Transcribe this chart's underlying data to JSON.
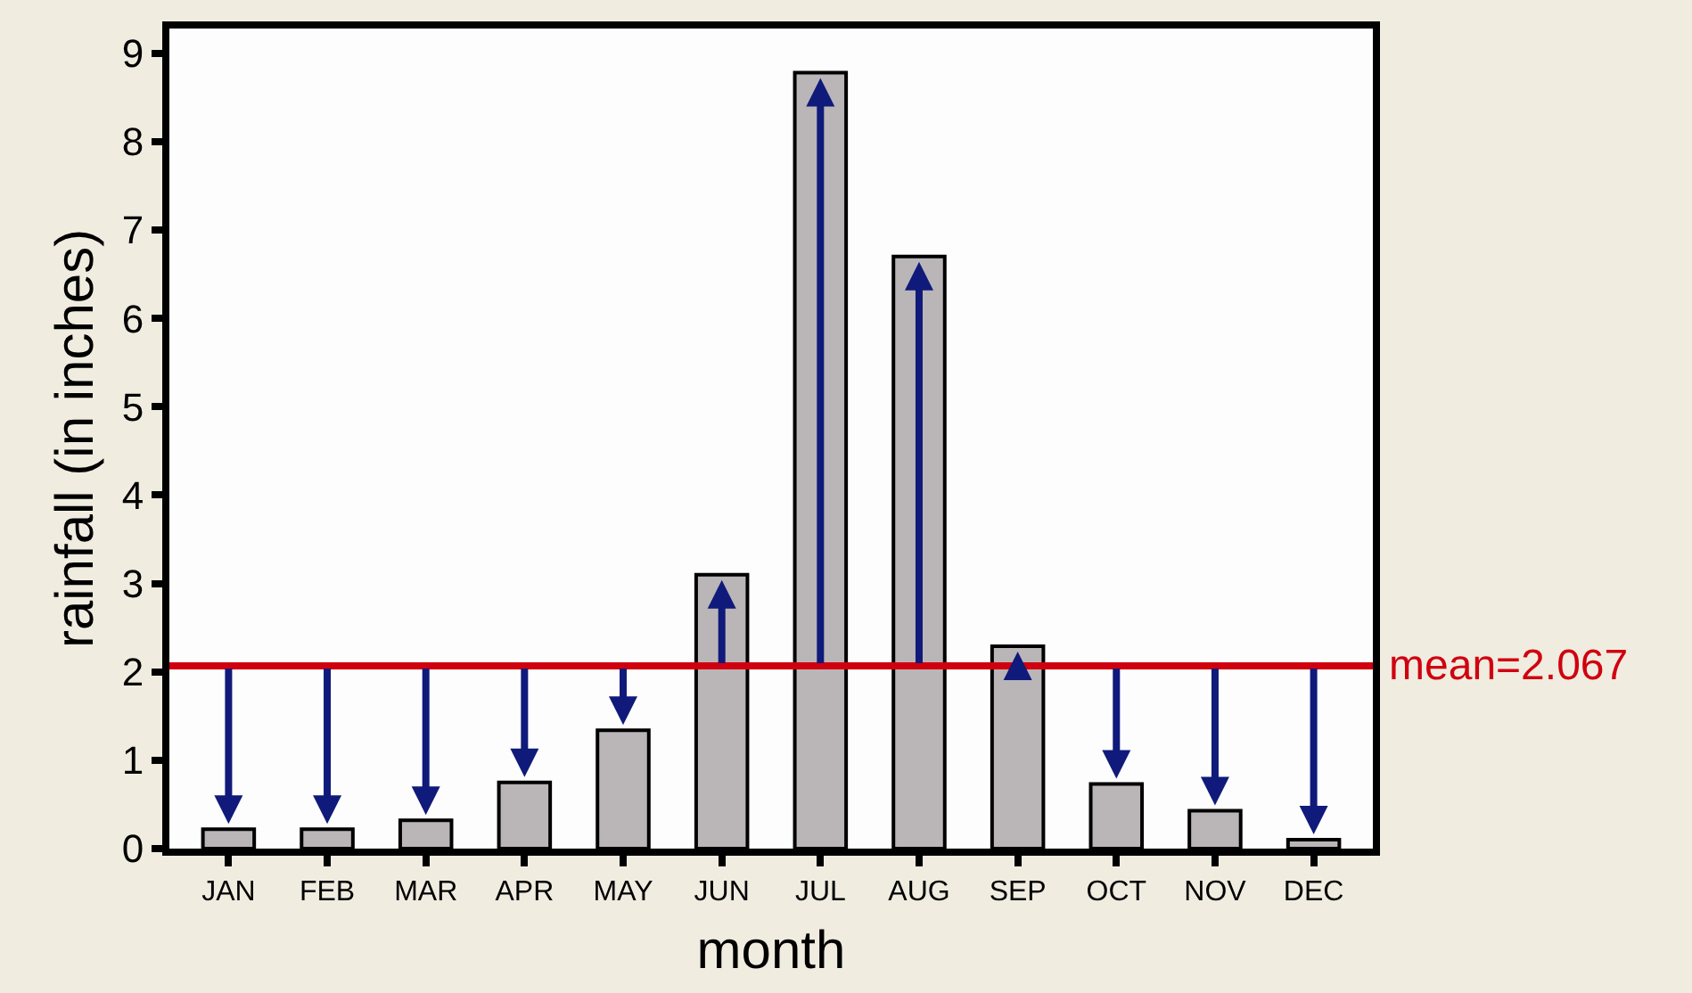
{
  "chart_data": {
    "type": "bar",
    "xlabel": "month",
    "ylabel": "rainfall (in inches)",
    "categories": [
      "JAN",
      "FEB",
      "MAR",
      "APR",
      "MAY",
      "JUN",
      "JUL",
      "AUG",
      "SEP",
      "OCT",
      "NOV",
      "DEC"
    ],
    "values": [
      0.22,
      0.22,
      0.32,
      0.75,
      1.34,
      3.1,
      8.78,
      6.7,
      2.29,
      0.73,
      0.43,
      0.1
    ],
    "errors": [
      [
        0.22,
        2.067
      ],
      [
        0.22,
        2.067
      ],
      [
        0.32,
        2.067
      ],
      [
        0.75,
        2.067
      ],
      [
        1.34,
        2.067
      ],
      [
        2.067,
        3.1
      ],
      [
        2.067,
        8.78
      ],
      [
        2.067,
        6.7
      ],
      [
        2.067,
        2.29
      ],
      [
        0.73,
        2.067
      ],
      [
        0.43,
        2.067
      ],
      [
        0.1,
        2.067
      ]
    ],
    "color": "#bab6b8",
    "ylim": [
      0,
      9.28
    ],
    "yticks": [
      0,
      1,
      2,
      3,
      4,
      5,
      6,
      7,
      8,
      9
    ],
    "ref_lines": [
      {
        "axis": "y",
        "value": 2.067,
        "label": "mean=2.067",
        "color": "#d0000f",
        "line_style": "solid"
      }
    ]
  }
}
